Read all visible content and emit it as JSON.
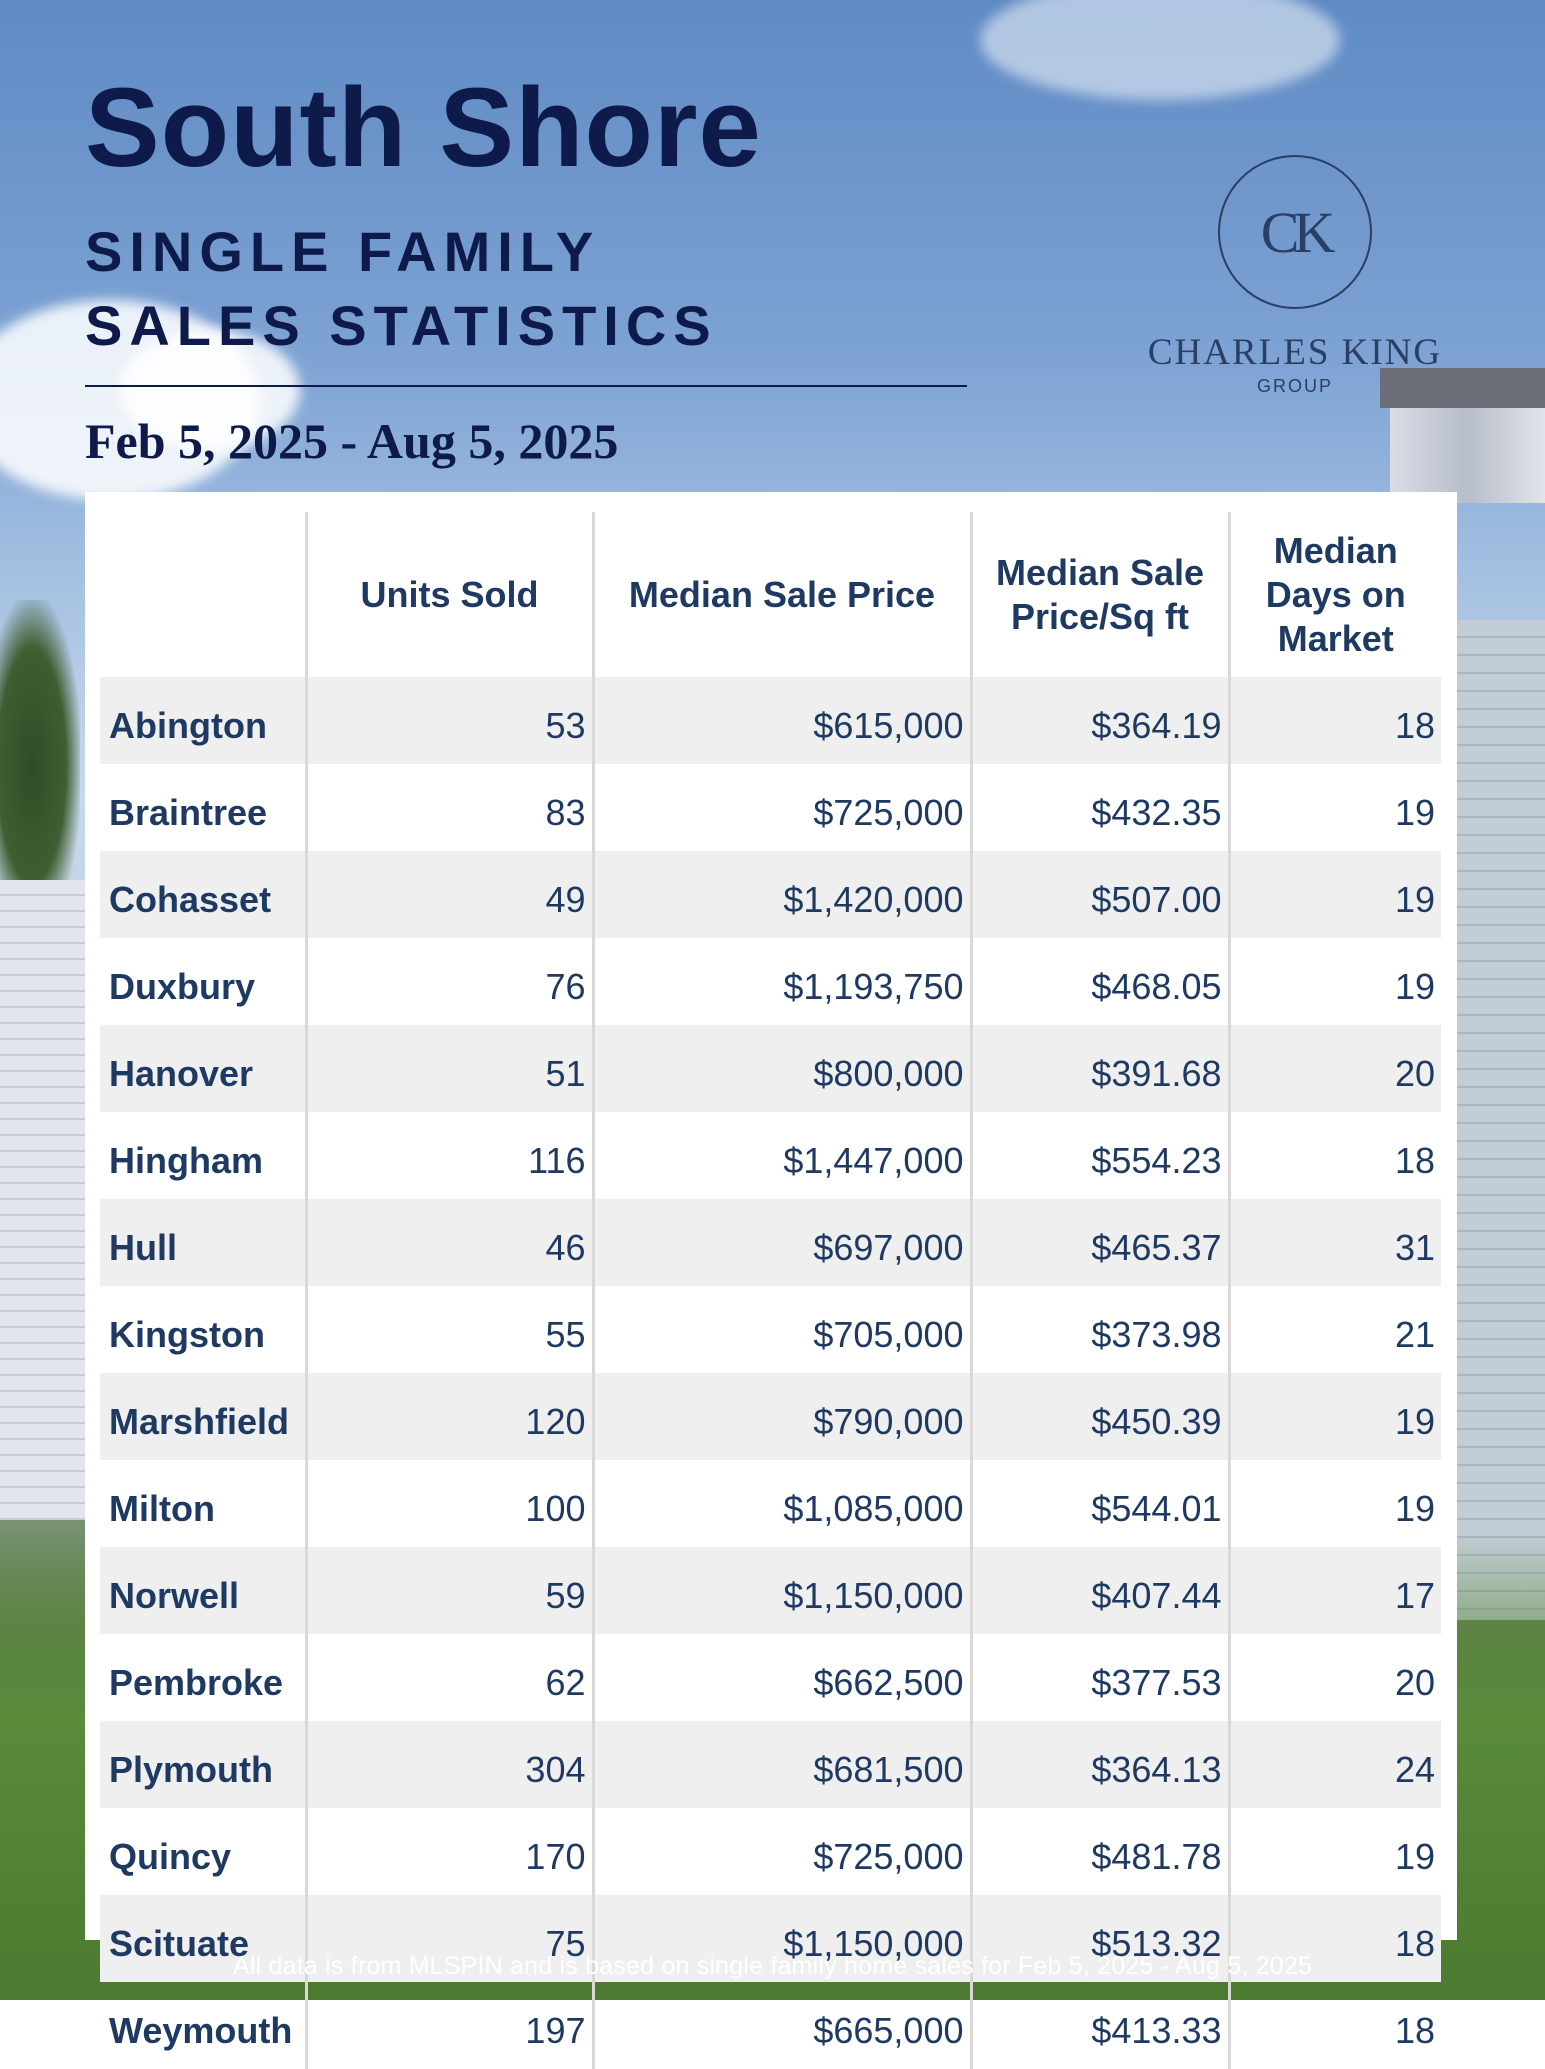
{
  "title": "South Shore",
  "subtitle_line1": "SINGLE FAMILY",
  "subtitle_line2": "SALES STATISTICS",
  "date_range": "Feb 5, 2025 - Aug 5, 2025",
  "logo": {
    "monogram": "CK",
    "name": "CHARLES KING",
    "group": "GROUP"
  },
  "table": {
    "headers": [
      "",
      "Units Sold",
      "Median Sale Price",
      "Median Sale Price/Sq ft",
      "Median Days on Market"
    ],
    "rows": [
      [
        "Abington",
        "53",
        "$615,000",
        "$364.19",
        "18"
      ],
      [
        "Braintree",
        "83",
        "$725,000",
        "$432.35",
        "19"
      ],
      [
        "Cohasset",
        "49",
        "$1,420,000",
        "$507.00",
        "19"
      ],
      [
        "Duxbury",
        "76",
        "$1,193,750",
        "$468.05",
        "19"
      ],
      [
        "Hanover",
        "51",
        "$800,000",
        "$391.68",
        "20"
      ],
      [
        "Hingham",
        "116",
        "$1,447,000",
        "$554.23",
        "18"
      ],
      [
        "Hull",
        "46",
        "$697,000",
        "$465.37",
        "31"
      ],
      [
        "Kingston",
        "55",
        "$705,000",
        "$373.98",
        "21"
      ],
      [
        "Marshfield",
        "120",
        "$790,000",
        "$450.39",
        "19"
      ],
      [
        "Milton",
        "100",
        "$1,085,000",
        "$544.01",
        "19"
      ],
      [
        "Norwell",
        "59",
        "$1,150,000",
        "$407.44",
        "17"
      ],
      [
        "Pembroke",
        "62",
        "$662,500",
        "$377.53",
        "20"
      ],
      [
        "Plymouth",
        "304",
        "$681,500",
        "$364.13",
        "24"
      ],
      [
        "Quincy",
        "170",
        "$725,000",
        "$481.78",
        "19"
      ],
      [
        "Scituate",
        "75",
        "$1,150,000",
        "$513.32",
        "18"
      ],
      [
        "Weymouth",
        "197",
        "$665,000",
        "$413.33",
        "18"
      ]
    ]
  },
  "footer": "All data is from MLSPIN and is based on single family home sales for Feb 5, 2025 - Aug 5, 2025"
}
